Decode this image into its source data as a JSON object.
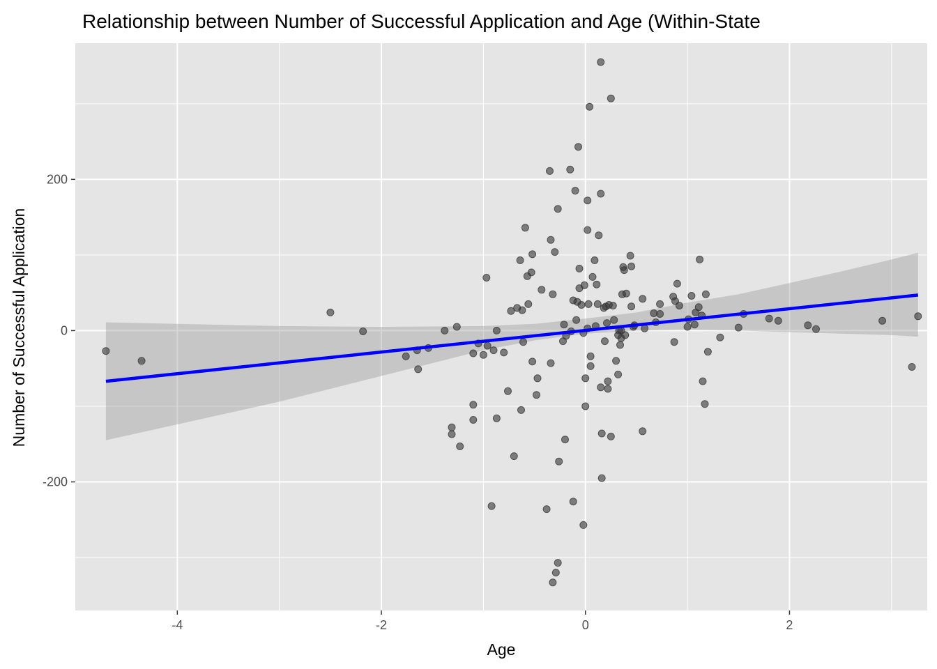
{
  "chart_data": {
    "type": "scatter",
    "title": "Relationship between Number of Successful Application and Age (Within-State",
    "xlabel": "Age",
    "ylabel": "Number of Successful Application",
    "xlim": [
      -5.0,
      3.35
    ],
    "ylim": [
      -370,
      380
    ],
    "x_ticks": [
      -4,
      -2,
      0,
      2
    ],
    "x_tick_labels": [
      "-4",
      "-2",
      "0",
      "2"
    ],
    "y_ticks": [
      -200,
      0,
      200
    ],
    "y_tick_labels": [
      "-200",
      "0",
      "200"
    ],
    "grid": true,
    "colors": {
      "panel": "#e5e5e5",
      "points": "#333333",
      "fit_line": "#0000ff",
      "ribbon": "#999999"
    },
    "points": [
      [
        -4.7,
        -27
      ],
      [
        -4.35,
        -40
      ],
      [
        -2.5,
        24
      ],
      [
        -2.18,
        -1
      ],
      [
        -1.76,
        -34
      ],
      [
        -1.65,
        -26
      ],
      [
        -1.64,
        -51
      ],
      [
        -1.54,
        -23
      ],
      [
        -1.38,
        0
      ],
      [
        -1.31,
        -128
      ],
      [
        -1.31,
        -137
      ],
      [
        -1.26,
        5
      ],
      [
        -1.23,
        -153
      ],
      [
        -1.1,
        -98
      ],
      [
        -1.1,
        -118
      ],
      [
        -1.1,
        -30
      ],
      [
        -1.05,
        -17
      ],
      [
        -1.0,
        -32
      ],
      [
        -0.97,
        70
      ],
      [
        -0.96,
        -20
      ],
      [
        -0.92,
        -232
      ],
      [
        -0.9,
        -26
      ],
      [
        -0.87,
        -116
      ],
      [
        -0.87,
        0
      ],
      [
        -0.8,
        -29
      ],
      [
        -0.76,
        -80
      ],
      [
        -0.73,
        26
      ],
      [
        -0.7,
        -166
      ],
      [
        -0.67,
        30
      ],
      [
        -0.64,
        93
      ],
      [
        -0.63,
        -105
      ],
      [
        -0.62,
        27
      ],
      [
        -0.61,
        -15
      ],
      [
        -0.59,
        136
      ],
      [
        -0.57,
        72
      ],
      [
        -0.56,
        35
      ],
      [
        -0.53,
        77
      ],
      [
        -0.52,
        -41
      ],
      [
        -0.52,
        101
      ],
      [
        -0.48,
        -85
      ],
      [
        -0.47,
        -63
      ],
      [
        -0.43,
        54
      ],
      [
        -0.38,
        -236
      ],
      [
        -0.35,
        211
      ],
      [
        -0.34,
        120
      ],
      [
        -0.34,
        -43
      ],
      [
        -0.32,
        -333
      ],
      [
        -0.32,
        48
      ],
      [
        -0.3,
        104
      ],
      [
        -0.29,
        -320
      ],
      [
        -0.27,
        -307
      ],
      [
        -0.27,
        161
      ],
      [
        -0.26,
        -173
      ],
      [
        -0.22,
        -14
      ],
      [
        -0.21,
        8
      ],
      [
        -0.2,
        -144
      ],
      [
        -0.19,
        -7
      ],
      [
        -0.15,
        213
      ],
      [
        -0.14,
        -1
      ],
      [
        -0.12,
        40
      ],
      [
        -0.12,
        -226
      ],
      [
        -0.1,
        185
      ],
      [
        -0.09,
        14
      ],
      [
        -0.08,
        38
      ],
      [
        -0.07,
        243
      ],
      [
        -0.06,
        56
      ],
      [
        -0.06,
        82
      ],
      [
        -0.04,
        34
      ],
      [
        -0.02,
        -257
      ],
      [
        -0.02,
        -3
      ],
      [
        -0.01,
        60
      ],
      [
        0.0,
        -100
      ],
      [
        0.0,
        -63
      ],
      [
        0.02,
        172
      ],
      [
        0.02,
        133
      ],
      [
        0.02,
        3
      ],
      [
        0.03,
        35
      ],
      [
        0.04,
        296
      ],
      [
        0.05,
        -47
      ],
      [
        0.05,
        -34
      ],
      [
        0.07,
        71
      ],
      [
        0.09,
        93
      ],
      [
        0.1,
        6
      ],
      [
        0.11,
        61
      ],
      [
        0.12,
        35
      ],
      [
        0.13,
        126
      ],
      [
        0.15,
        355
      ],
      [
        0.15,
        181
      ],
      [
        0.15,
        -75
      ],
      [
        0.16,
        -195
      ],
      [
        0.16,
        -136
      ],
      [
        0.18,
        30
      ],
      [
        0.19,
        -14
      ],
      [
        0.2,
        32
      ],
      [
        0.21,
        10
      ],
      [
        0.22,
        -67
      ],
      [
        0.22,
        -77
      ],
      [
        0.23,
        34
      ],
      [
        0.25,
        -140
      ],
      [
        0.25,
        307
      ],
      [
        0.27,
        33
      ],
      [
        0.28,
        14
      ],
      [
        0.3,
        -40
      ],
      [
        0.32,
        -58
      ],
      [
        0.32,
        -6
      ],
      [
        0.33,
        0
      ],
      [
        0.34,
        -19
      ],
      [
        0.35,
        0
      ],
      [
        0.35,
        -10
      ],
      [
        0.36,
        48
      ],
      [
        0.37,
        84
      ],
      [
        0.38,
        80
      ],
      [
        0.39,
        -6
      ],
      [
        0.4,
        49
      ],
      [
        0.44,
        99
      ],
      [
        0.45,
        85
      ],
      [
        0.45,
        32
      ],
      [
        0.47,
        5
      ],
      [
        0.48,
        7
      ],
      [
        0.56,
        -133
      ],
      [
        0.56,
        42
      ],
      [
        0.58,
        3
      ],
      [
        0.67,
        23
      ],
      [
        0.69,
        11
      ],
      [
        0.73,
        22
      ],
      [
        0.73,
        35
      ],
      [
        0.86,
        45
      ],
      [
        0.87,
        -15
      ],
      [
        0.88,
        39
      ],
      [
        0.9,
        62
      ],
      [
        0.92,
        33
      ],
      [
        1.0,
        5
      ],
      [
        1.01,
        15
      ],
      [
        1.04,
        46
      ],
      [
        1.07,
        8
      ],
      [
        1.08,
        24
      ],
      [
        1.11,
        31
      ],
      [
        1.12,
        94
      ],
      [
        1.14,
        20
      ],
      [
        1.15,
        -67
      ],
      [
        1.17,
        -97
      ],
      [
        1.18,
        48
      ],
      [
        1.2,
        -28
      ],
      [
        1.32,
        -9
      ],
      [
        1.5,
        4
      ],
      [
        1.55,
        22
      ],
      [
        1.8,
        16
      ],
      [
        1.89,
        13
      ],
      [
        2.18,
        7
      ],
      [
        2.26,
        2
      ],
      [
        2.91,
        13
      ],
      [
        3.2,
        -48
      ],
      [
        3.26,
        19
      ]
    ],
    "fit_line": {
      "x": [
        -4.7,
        3.26
      ],
      "y": [
        -67,
        47
      ]
    },
    "confidence_band": {
      "x": [
        -4.7,
        -4.0,
        -3.0,
        -2.0,
        -1.0,
        -0.5,
        0.0,
        0.5,
        1.0,
        1.5,
        2.0,
        2.5,
        3.0,
        3.26
      ],
      "lower": [
        -145,
        -124,
        -94,
        -60,
        -26,
        -13,
        -4,
        0,
        1,
        0,
        -2,
        -4,
        -6,
        -8
      ],
      "upper": [
        11,
        9,
        6,
        5,
        6,
        9,
        16,
        24,
        37,
        48,
        63,
        78,
        94,
        103
      ]
    }
  }
}
